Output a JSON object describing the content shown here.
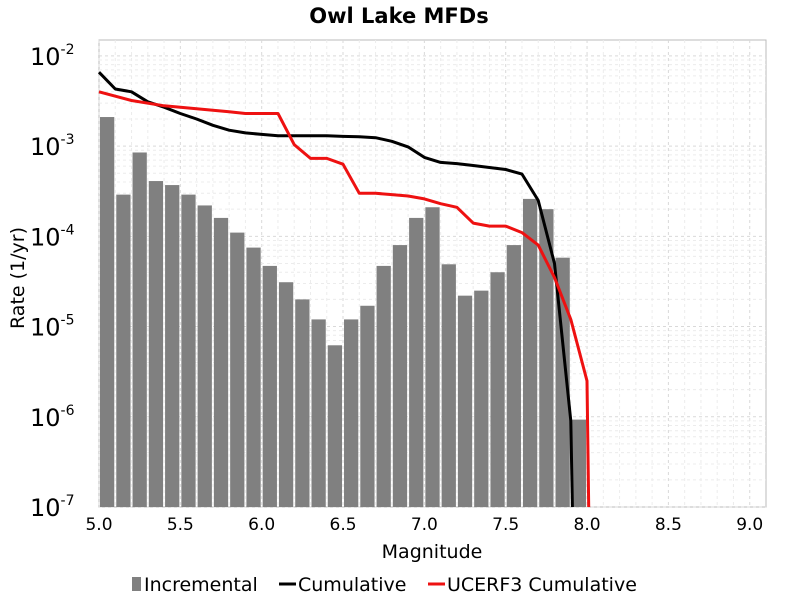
{
  "chart_data": {
    "type": "bar+line",
    "title": "Owl Lake MFDs",
    "xlabel": "Magnitude",
    "ylabel": "Rate (1/yr)",
    "xlim": [
      5.0,
      9.1
    ],
    "ylim": [
      1e-07,
      0.015
    ],
    "yscale": "log",
    "grid": true,
    "x_ticks": [
      "5.0",
      "5.5",
      "6.0",
      "6.5",
      "7.0",
      "7.5",
      "8.0",
      "8.5",
      "9.0"
    ],
    "y_ticks": [
      {
        "base": "10",
        "exp": "-7",
        "value": 1e-07
      },
      {
        "base": "10",
        "exp": "-6",
        "value": 1e-06
      },
      {
        "base": "10",
        "exp": "-5",
        "value": 1e-05
      },
      {
        "base": "10",
        "exp": "-4",
        "value": 0.0001
      },
      {
        "base": "10",
        "exp": "-3",
        "value": 0.001
      },
      {
        "base": "10",
        "exp": "-2",
        "value": 0.01
      }
    ],
    "legend_position": "bottom",
    "series": [
      {
        "name": "Incremental",
        "type": "bar",
        "color": "#808080",
        "bin_width": 0.1,
        "x": [
          5.05,
          5.15,
          5.25,
          5.35,
          5.45,
          5.55,
          5.65,
          5.75,
          5.85,
          5.95,
          6.05,
          6.15,
          6.25,
          6.35,
          6.45,
          6.55,
          6.65,
          6.75,
          6.85,
          6.95,
          7.05,
          7.15,
          7.25,
          7.35,
          7.45,
          7.55,
          7.65,
          7.75,
          7.85,
          7.95
        ],
        "y": [
          0.0021,
          0.00029,
          0.00085,
          0.00041,
          0.00037,
          0.00029,
          0.00022,
          0.00016,
          0.00011,
          7.5e-05,
          4.7e-05,
          3.1e-05,
          2e-05,
          1.2e-05,
          6.2e-06,
          1.2e-05,
          1.7e-05,
          4.7e-05,
          8e-05,
          0.00016,
          0.00021,
          4.9e-05,
          2.2e-05,
          2.5e-05,
          4e-05,
          8e-05,
          0.00026,
          0.0002,
          5.8e-05,
          9.3e-07
        ]
      },
      {
        "name": "Cumulative",
        "type": "line",
        "color": "#000000",
        "x": [
          5.0,
          5.1,
          5.2,
          5.3,
          5.4,
          5.5,
          5.6,
          5.7,
          5.8,
          5.9,
          6.0,
          6.1,
          6.2,
          6.3,
          6.4,
          6.5,
          6.6,
          6.7,
          6.8,
          6.9,
          7.0,
          7.1,
          7.2,
          7.3,
          7.4,
          7.5,
          7.6,
          7.7,
          7.8,
          7.9,
          7.91
        ],
        "y": [
          0.0066,
          0.0043,
          0.004,
          0.0031,
          0.0027,
          0.0023,
          0.002,
          0.0017,
          0.0015,
          0.0014,
          0.00135,
          0.0013,
          0.0013,
          0.0013,
          0.0013,
          0.00128,
          0.00127,
          0.00124,
          0.00113,
          0.00098,
          0.00075,
          0.00066,
          0.00064,
          0.00061,
          0.00058,
          0.00055,
          0.00049,
          0.00025,
          5e-05,
          9e-07,
          1e-07
        ]
      },
      {
        "name": "UCERF3 Cumulative",
        "type": "line",
        "color": "#ee1111",
        "x": [
          5.0,
          5.2,
          5.4,
          5.6,
          5.8,
          5.9,
          6.1,
          6.2,
          6.3,
          6.4,
          6.5,
          6.6,
          6.7,
          6.8,
          6.9,
          7.0,
          7.1,
          7.2,
          7.3,
          7.4,
          7.5,
          7.6,
          7.7,
          7.8,
          7.9,
          8.0,
          8.01
        ],
        "y": [
          0.004,
          0.0032,
          0.0028,
          0.0026,
          0.0024,
          0.0023,
          0.0023,
          0.00104,
          0.00073,
          0.00073,
          0.00063,
          0.0003,
          0.0003,
          0.00029,
          0.00028,
          0.00026,
          0.00023,
          0.00021,
          0.00014,
          0.00013,
          0.00013,
          0.00011,
          8e-05,
          3.5e-05,
          1.2e-05,
          2.5e-06,
          1e-07
        ]
      }
    ]
  }
}
